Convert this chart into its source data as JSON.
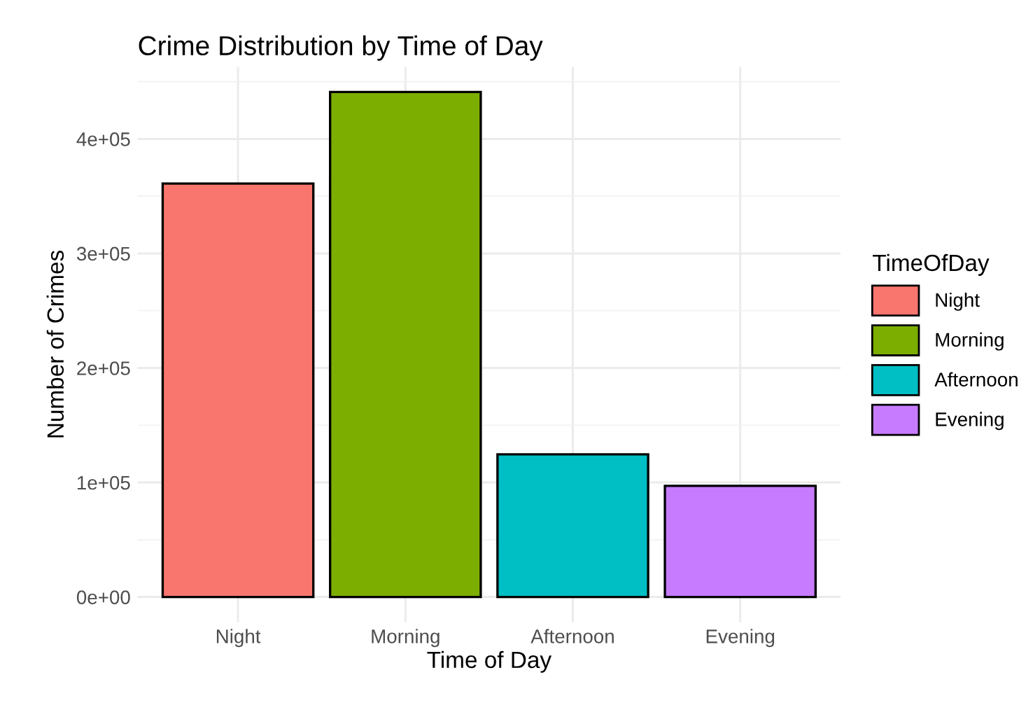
{
  "chart_data": {
    "type": "bar",
    "title": "Crime Distribution by Time of Day",
    "xlabel": "Time of Day",
    "ylabel": "Number of Crimes",
    "legend_title": "TimeOfDay",
    "categories": [
      "Night",
      "Morning",
      "Afternoon",
      "Evening"
    ],
    "series": [
      {
        "name": "Night",
        "color": "#f8766d",
        "values": [
          361000,
          null,
          null,
          null
        ]
      },
      {
        "name": "Morning",
        "color": "#7cae00",
        "values": [
          null,
          441000,
          null,
          null
        ]
      },
      {
        "name": "Afternoon",
        "color": "#00bfc4",
        "values": [
          null,
          null,
          124500,
          null
        ]
      },
      {
        "name": "Evening",
        "color": "#c77cff",
        "values": [
          null,
          null,
          null,
          97000
        ]
      }
    ],
    "ylim": [
      -22000,
      463000
    ],
    "yticks": [
      {
        "value": 0,
        "label": "0e+00"
      },
      {
        "value": 50000,
        "label": null
      },
      {
        "value": 100000,
        "label": "1e+05"
      },
      {
        "value": 150000,
        "label": null
      },
      {
        "value": 200000,
        "label": "2e+05"
      },
      {
        "value": 250000,
        "label": null
      },
      {
        "value": 300000,
        "label": "3e+05"
      },
      {
        "value": 350000,
        "label": null
      },
      {
        "value": 400000,
        "label": "4e+05"
      },
      {
        "value": 450000,
        "label": null
      }
    ],
    "grid": true,
    "legend": "right"
  }
}
